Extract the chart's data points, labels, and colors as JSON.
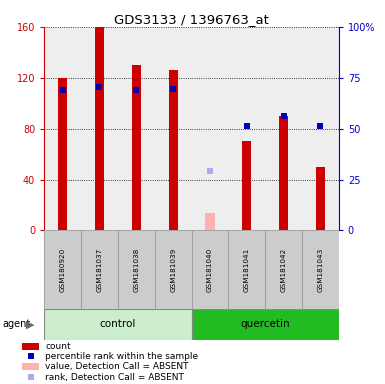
{
  "title": "GDS3133 / 1396763_at",
  "samples": [
    "GSM180920",
    "GSM181037",
    "GSM181038",
    "GSM181039",
    "GSM181040",
    "GSM181041",
    "GSM181042",
    "GSM181043"
  ],
  "count_values": [
    120,
    160,
    130,
    126,
    null,
    70,
    90,
    50
  ],
  "count_absent_values": [
    null,
    null,
    null,
    null,
    14,
    null,
    null,
    null
  ],
  "percentile_present": [
    null,
    null,
    null,
    null,
    null,
    null,
    null,
    null
  ],
  "percentile_present_left": [
    110,
    113,
    110,
    111,
    null,
    null,
    null,
    null
  ],
  "percentile_absent_left": [
    null,
    null,
    null,
    null,
    null,
    82,
    90,
    82
  ],
  "rank_absent_left": [
    null,
    null,
    null,
    null,
    47,
    null,
    null,
    null
  ],
  "ylim_left": [
    0,
    160
  ],
  "ylim_right": [
    0,
    100
  ],
  "yticks_left": [
    0,
    40,
    80,
    120,
    160
  ],
  "ytick_labels_left": [
    "0",
    "40",
    "80",
    "120",
    "160"
  ],
  "yticks_right": [
    0,
    25,
    50,
    75,
    100
  ],
  "ytick_labels_right": [
    "0",
    "25",
    "50",
    "75",
    "100%"
  ],
  "left_axis_color": "#cc0000",
  "right_axis_color": "#0000cc",
  "count_color": "#cc0000",
  "count_absent_color": "#ffb0b0",
  "percentile_present_color": "#0000bb",
  "percentile_absent_color": "#0000bb",
  "rank_absent_color": "#aaaaee",
  "control_bg": "#cceecc",
  "quercetin_bg": "#22bb22",
  "sample_bg": "#cccccc",
  "plot_bg": "#eeeeee"
}
